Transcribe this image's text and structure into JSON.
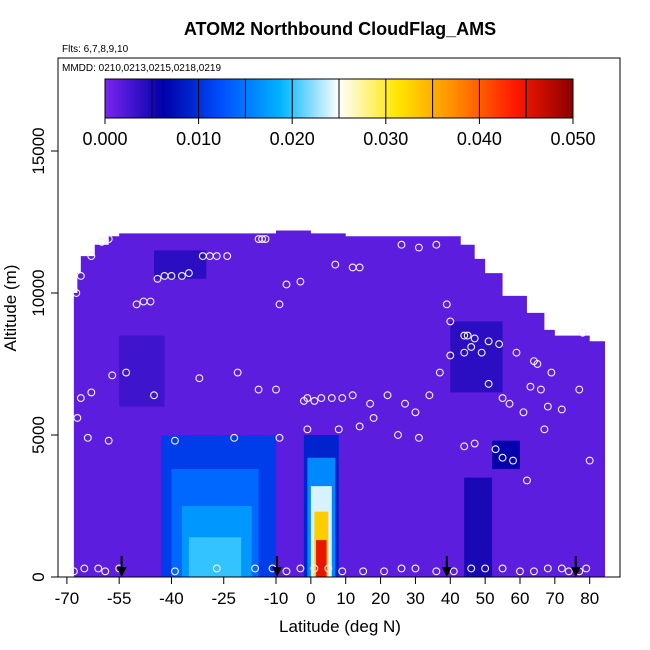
{
  "chart_data": {
    "type": "heatmap",
    "title": "ATOM2 Northbound CloudFlag_AMS",
    "flights_note": "Flts: 6,7,8,9,10",
    "dates_note": "MMDD: 0210,0213,0215,0218,0219",
    "xlabel": "Latitude (deg N)",
    "ylabel": "Altitude (m)",
    "xlim": [
      -70,
      85
    ],
    "ylim": [
      0,
      17500
    ],
    "x_ticks": [
      -70,
      -55,
      -40,
      -25,
      -10,
      0,
      10,
      20,
      30,
      40,
      50,
      60,
      70,
      80
    ],
    "x_tick_labels": [
      "-70",
      "-55",
      "-40",
      "-25",
      "-10",
      "0",
      "10",
      "20",
      "30",
      "40",
      "50",
      "60",
      "70",
      "80"
    ],
    "y_ticks": [
      0,
      5000,
      10000,
      15000
    ],
    "y_tick_labels": [
      "0",
      "5000",
      "10000",
      "15000"
    ],
    "colorbar": {
      "range": [
        0,
        0.05
      ],
      "tick_values": [
        0,
        0.01,
        0.02,
        0.03,
        0.04,
        0.05
      ],
      "tick_labels": [
        "0.000",
        "0.010",
        "0.020",
        "0.030",
        "0.040",
        "0.050"
      ],
      "colors": [
        "#7a26f0",
        "#0000a8",
        "#0050ff",
        "#00b4ff",
        "#ffffff",
        "#ffe600",
        "#ff8a00",
        "#ff1a00",
        "#8b0000"
      ]
    },
    "background_value": 0.0015,
    "coverage_envelope": [
      [
        -68,
        0,
        10000
      ],
      [
        -67,
        0,
        10700
      ],
      [
        -66,
        0,
        11300
      ],
      [
        -62,
        0,
        11700
      ],
      [
        -58,
        0,
        12000
      ],
      [
        -55,
        0,
        12100
      ],
      [
        -40,
        0,
        12100
      ],
      [
        -25,
        0,
        12100
      ],
      [
        -10,
        0,
        12200
      ],
      [
        0,
        0,
        12100
      ],
      [
        10,
        0,
        12000
      ],
      [
        20,
        0,
        12000
      ],
      [
        30,
        0,
        12000
      ],
      [
        38,
        0,
        12000
      ],
      [
        43,
        0,
        11700
      ],
      [
        47,
        0,
        11200
      ],
      [
        50,
        0,
        10700
      ],
      [
        55,
        0,
        9900
      ],
      [
        62,
        0,
        9300
      ],
      [
        67,
        0,
        8700
      ],
      [
        70,
        0,
        8500
      ],
      [
        80,
        0,
        8300
      ]
    ],
    "features": [
      {
        "lat_min": -43,
        "lat_max": -10,
        "alt_min": 0,
        "alt_max": 5000,
        "value": 0.011
      },
      {
        "lat_min": -40,
        "lat_max": -15,
        "alt_min": 0,
        "alt_max": 3800,
        "value": 0.014
      },
      {
        "lat_min": -37,
        "lat_max": -17,
        "alt_min": 0,
        "alt_max": 2500,
        "value": 0.017
      },
      {
        "lat_min": -35,
        "lat_max": -20,
        "alt_min": 0,
        "alt_max": 1400,
        "value": 0.02
      },
      {
        "lat_min": -2,
        "lat_max": 8,
        "alt_min": 0,
        "alt_max": 5000,
        "value": 0.009
      },
      {
        "lat_min": -1,
        "lat_max": 7,
        "alt_min": 0,
        "alt_max": 4200,
        "value": 0.016
      },
      {
        "lat_min": 0,
        "lat_max": 6,
        "alt_min": 0,
        "alt_max": 3200,
        "value": 0.024
      },
      {
        "lat_min": 1,
        "lat_max": 5,
        "alt_min": 0,
        "alt_max": 2300,
        "value": 0.033
      },
      {
        "lat_min": 1.5,
        "lat_max": 4.5,
        "alt_min": 0,
        "alt_max": 1300,
        "value": 0.045
      },
      {
        "lat_min": 52,
        "lat_max": 60,
        "alt_min": 3800,
        "alt_max": 4800,
        "value": 0.006
      },
      {
        "lat_min": 40,
        "lat_max": 55,
        "alt_min": 6500,
        "alt_max": 9000,
        "value": 0.004
      },
      {
        "lat_min": 44,
        "lat_max": 52,
        "alt_min": 0,
        "alt_max": 3500,
        "value": 0.005
      },
      {
        "lat_min": -55,
        "lat_max": -42,
        "alt_min": 6000,
        "alt_max": 8500,
        "value": 0.003
      },
      {
        "lat_min": -45,
        "lat_max": -30,
        "alt_min": 10500,
        "alt_max": 11500,
        "value": 0.004
      }
    ],
    "points": [
      [
        -67.3,
        10000
      ],
      [
        -66,
        10600
      ],
      [
        -63,
        11300
      ],
      [
        -60,
        11800
      ],
      [
        -58,
        11900
      ],
      [
        -50,
        9600
      ],
      [
        -48,
        9700
      ],
      [
        -46,
        9700
      ],
      [
        -44,
        10500
      ],
      [
        -42,
        10600
      ],
      [
        -40,
        10600
      ],
      [
        -37,
        10600
      ],
      [
        -35,
        10700
      ],
      [
        -31,
        11300
      ],
      [
        -29,
        11300
      ],
      [
        -27,
        11300
      ],
      [
        -24,
        11300
      ],
      [
        -15,
        11900
      ],
      [
        -14,
        11900
      ],
      [
        -13,
        11900
      ],
      [
        -9,
        9600
      ],
      [
        -7,
        10300
      ],
      [
        -3,
        10400
      ],
      [
        7,
        11000
      ],
      [
        12,
        10900
      ],
      [
        14,
        10900
      ],
      [
        26,
        11700
      ],
      [
        31,
        11600
      ],
      [
        36,
        11700
      ],
      [
        39,
        9600
      ],
      [
        40,
        9000
      ],
      [
        44,
        8500
      ],
      [
        45,
        8500
      ],
      [
        47,
        8400
      ],
      [
        51,
        8300
      ],
      [
        54,
        8200
      ],
      [
        59,
        7900
      ],
      [
        64,
        7600
      ],
      [
        65,
        7500
      ],
      [
        69,
        7200
      ],
      [
        -66,
        6300
      ],
      [
        -63,
        6500
      ],
      [
        -57,
        7100
      ],
      [
        -53,
        7200
      ],
      [
        -45,
        6400
      ],
      [
        -32,
        7000
      ],
      [
        -21,
        7200
      ],
      [
        -15,
        6600
      ],
      [
        -10,
        6600
      ],
      [
        -2,
        6200
      ],
      [
        -1,
        6300
      ],
      [
        1,
        6200
      ],
      [
        3,
        6300
      ],
      [
        6,
        6300
      ],
      [
        9,
        6300
      ],
      [
        12,
        6400
      ],
      [
        17,
        6100
      ],
      [
        22,
        6400
      ],
      [
        27,
        6100
      ],
      [
        30,
        5800
      ],
      [
        34,
        6400
      ],
      [
        37,
        7200
      ],
      [
        40,
        7800
      ],
      [
        44,
        7900
      ],
      [
        46,
        8100
      ],
      [
        49,
        7900
      ],
      [
        51,
        6800
      ],
      [
        55,
        6300
      ],
      [
        57,
        6100
      ],
      [
        61,
        5800
      ],
      [
        63,
        6700
      ],
      [
        66,
        6600
      ],
      [
        68,
        6000
      ],
      [
        72,
        5900
      ],
      [
        77,
        6600
      ],
      [
        78,
        8600
      ],
      [
        -67,
        5600
      ],
      [
        -64,
        4900
      ],
      [
        -58,
        4800
      ],
      [
        -39,
        4800
      ],
      [
        -22,
        4900
      ],
      [
        -9,
        4900
      ],
      [
        -1,
        5200
      ],
      [
        8,
        5200
      ],
      [
        14,
        5300
      ],
      [
        18,
        5600
      ],
      [
        25,
        5000
      ],
      [
        31,
        4900
      ],
      [
        44,
        4600
      ],
      [
        47,
        4700
      ],
      [
        53,
        4500
      ],
      [
        55,
        4200
      ],
      [
        58,
        4100
      ],
      [
        62,
        3400
      ],
      [
        67,
        5200
      ],
      [
        80,
        4100
      ],
      [
        -68,
        200
      ],
      [
        -65,
        300
      ],
      [
        -61,
        300
      ],
      [
        -59,
        200
      ],
      [
        -55,
        300
      ],
      [
        -39,
        200
      ],
      [
        -27,
        300
      ],
      [
        -16,
        300
      ],
      [
        -11,
        300
      ],
      [
        -7,
        200
      ],
      [
        -3,
        300
      ],
      [
        1,
        300
      ],
      [
        5,
        300
      ],
      [
        9,
        200
      ],
      [
        15,
        200
      ],
      [
        21,
        200
      ],
      [
        26,
        300
      ],
      [
        30,
        300
      ],
      [
        36,
        200
      ],
      [
        41,
        200
      ],
      [
        46,
        300
      ],
      [
        50,
        300
      ],
      [
        55,
        300
      ],
      [
        60,
        200
      ],
      [
        64,
        200
      ],
      [
        68,
        300
      ],
      [
        72,
        300
      ],
      [
        74,
        200
      ],
      [
        77,
        200
      ],
      [
        79,
        300
      ]
    ],
    "flight_markers": [
      -54.3,
      -9.7,
      39,
      76
    ]
  }
}
